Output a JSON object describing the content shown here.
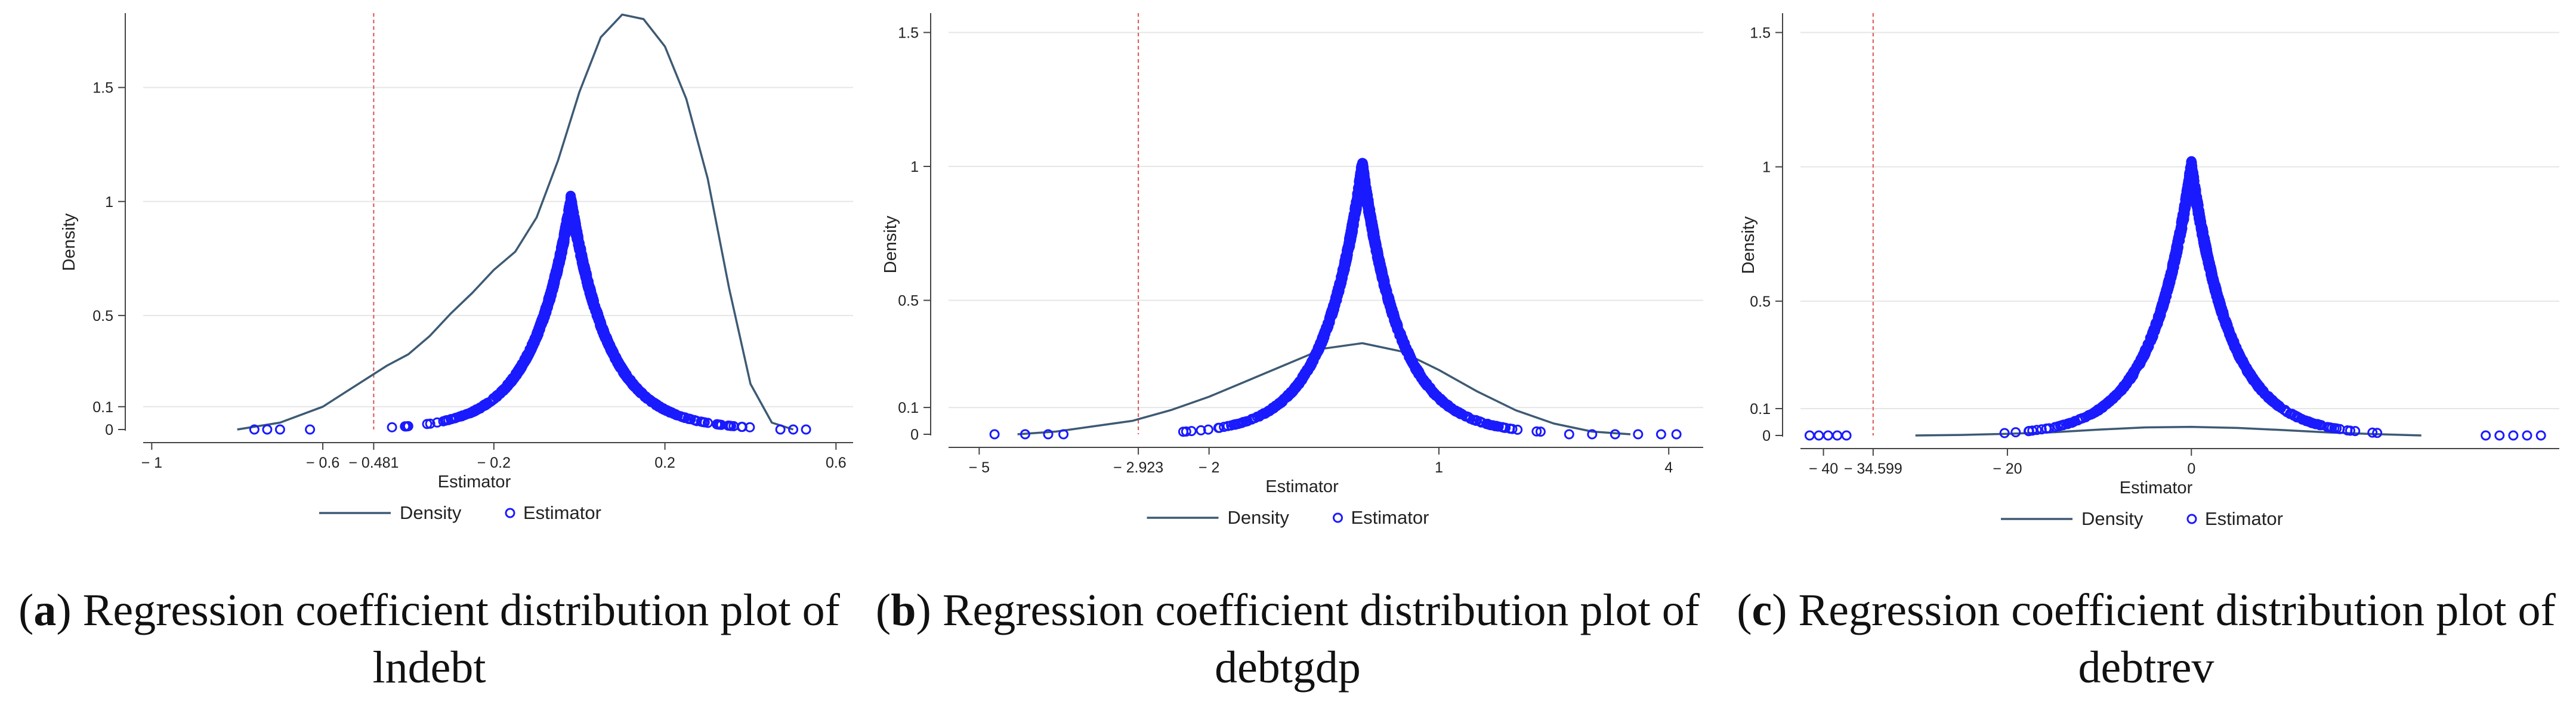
{
  "chart_data": [
    {
      "type": "line",
      "caption_letter": "a",
      "caption_text": "Regression coefficient distribution plot of lndebt",
      "xlabel": "Estimator",
      "ylabel": "Density",
      "xlim": [
        -1.02,
        0.64
      ],
      "ylim": [
        0,
        1.8
      ],
      "x_ticks": [
        {
          "value": -1,
          "label": "− 1"
        },
        {
          "value": -0.6,
          "label": "− 0.6"
        },
        {
          "value": -0.481,
          "label": "− 0.481"
        },
        {
          "value": -0.2,
          "label": "− 0.2"
        },
        {
          "value": 0.2,
          "label": "0.2"
        },
        {
          "value": 0.6,
          "label": "0.6"
        }
      ],
      "y_ticks": [
        {
          "value": 0,
          "label": "0"
        },
        {
          "value": 0.1,
          "label": "0.1"
        },
        {
          "value": 0.5,
          "label": "0.5"
        },
        {
          "value": 1,
          "label": "1"
        },
        {
          "value": 1.5,
          "label": "1.5"
        }
      ],
      "reference_line_x": -0.481,
      "series": [
        {
          "name": "Density",
          "kind": "line",
          "color": "#3d5a74",
          "x": [
            -0.8,
            -0.7,
            -0.6,
            -0.55,
            -0.5,
            -0.45,
            -0.4,
            -0.35,
            -0.3,
            -0.25,
            -0.2,
            -0.15,
            -0.1,
            -0.05,
            0.0,
            0.05,
            0.1,
            0.15,
            0.2,
            0.25,
            0.3,
            0.35,
            0.4,
            0.45,
            0.5
          ],
          "y": [
            0.0,
            0.03,
            0.1,
            0.16,
            0.22,
            0.28,
            0.33,
            0.41,
            0.51,
            0.6,
            0.7,
            0.78,
            0.93,
            1.18,
            1.48,
            1.72,
            1.82,
            1.8,
            1.68,
            1.45,
            1.1,
            0.62,
            0.2,
            0.03,
            0.0
          ]
        },
        {
          "name": "Estimator",
          "kind": "scatter",
          "color": "#1a1aff",
          "center": -0.02,
          "scale": 0.09,
          "peak": 1.0,
          "outliers": [
            -0.76,
            -0.73,
            -0.7,
            -0.63,
            0.47,
            0.5,
            0.53
          ]
        }
      ],
      "legend": [
        "Density",
        "Estimator"
      ]
    },
    {
      "type": "line",
      "caption_letter": "b",
      "caption_text": "Regression coefficient distribution plot of debtgdp",
      "xlabel": "Estimator",
      "ylabel": "Density",
      "xlim": [
        -5.4,
        4.45
      ],
      "ylim": [
        0,
        1.55
      ],
      "x_ticks": [
        {
          "value": -5,
          "label": "− 5"
        },
        {
          "value": -2.923,
          "label": "− 2.923"
        },
        {
          "value": -2,
          "label": "− 2"
        },
        {
          "value": 1,
          "label": "1"
        },
        {
          "value": 4,
          "label": "4"
        }
      ],
      "y_ticks": [
        {
          "value": 0,
          "label": "0"
        },
        {
          "value": 0.1,
          "label": "0.1"
        },
        {
          "value": 0.5,
          "label": "0.5"
        },
        {
          "value": 1,
          "label": "1"
        },
        {
          "value": 1.5,
          "label": "1.5"
        }
      ],
      "reference_line_x": -2.923,
      "series": [
        {
          "name": "Density",
          "kind": "line",
          "color": "#3d5a74",
          "x": [
            -4.5,
            -4.0,
            -3.5,
            -3.0,
            -2.5,
            -2.0,
            -1.5,
            -1.0,
            -0.5,
            0.0,
            0.5,
            1.0,
            1.5,
            2.0,
            2.5,
            3.0,
            3.5
          ],
          "y": [
            0.0,
            0.01,
            0.03,
            0.05,
            0.09,
            0.14,
            0.2,
            0.26,
            0.32,
            0.34,
            0.31,
            0.24,
            0.16,
            0.09,
            0.04,
            0.01,
            0.0
          ]
        },
        {
          "name": "Estimator",
          "kind": "scatter",
          "color": "#1a1aff",
          "center": 0.0,
          "scale": 0.5,
          "peak": 1.0,
          "outliers": [
            -4.8,
            -4.4,
            -4.1,
            -3.9,
            2.7,
            3.0,
            3.3,
            3.6,
            3.9,
            4.1
          ]
        }
      ],
      "legend": [
        "Density",
        "Estimator"
      ]
    },
    {
      "type": "line",
      "caption_letter": "c",
      "caption_text": "Regression coefficient distribution plot of debtrev",
      "xlabel": "Estimator",
      "ylabel": "Density",
      "xlim": [
        -42.5,
        40
      ],
      "ylim": [
        0,
        1.55
      ],
      "x_ticks": [
        {
          "value": -40,
          "label": "− 40"
        },
        {
          "value": -34.599,
          "label": "− 34.599"
        },
        {
          "value": -20,
          "label": "− 20"
        },
        {
          "value": 0,
          "label": "0"
        }
      ],
      "y_ticks": [
        {
          "value": 0,
          "label": "0"
        },
        {
          "value": 0.1,
          "label": "0.1"
        },
        {
          "value": 0.5,
          "label": "0.5"
        },
        {
          "value": 1,
          "label": "1"
        },
        {
          "value": 1.5,
          "label": "1.5"
        }
      ],
      "reference_line_x": -34.599,
      "series": [
        {
          "name": "Density",
          "kind": "line",
          "color": "#3d5a74",
          "x": [
            -30,
            -25,
            -20,
            -15,
            -10,
            -5,
            0,
            5,
            10,
            15,
            20,
            25
          ],
          "y": [
            0.0,
            0.002,
            0.006,
            0.012,
            0.022,
            0.03,
            0.032,
            0.028,
            0.02,
            0.011,
            0.005,
            0.0
          ]
        },
        {
          "name": "Estimator",
          "kind": "scatter",
          "color": "#1a1aff",
          "center": 0.0,
          "scale": 4.3,
          "peak": 1.0,
          "outliers": [
            -41.5,
            -40.5,
            -39.5,
            -38.5,
            -37.5,
            32,
            33.5,
            35,
            36.5,
            38
          ]
        }
      ],
      "legend": [
        "Density",
        "Estimator"
      ]
    }
  ]
}
